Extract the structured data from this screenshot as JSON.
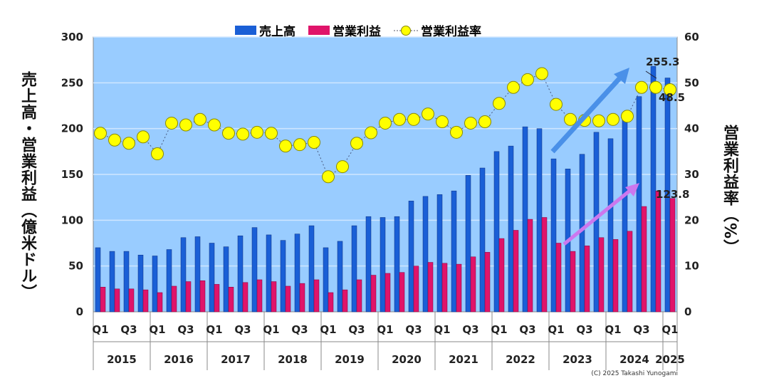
{
  "chart_data": {
    "type": "bar",
    "title": "",
    "ylabel": "売上高・営業利益（億米ドル）",
    "y2label": "営業利益率（%）",
    "ylim": [
      0,
      300
    ],
    "y2lim": [
      0,
      60
    ],
    "yticks": [
      0,
      50,
      100,
      150,
      200,
      250,
      300
    ],
    "y2ticks": [
      0,
      10,
      20,
      30,
      40,
      50,
      60
    ],
    "grid": true,
    "legend_position": "top",
    "years": [
      "2015",
      "2016",
      "2017",
      "2018",
      "2019",
      "2020",
      "2021",
      "2022",
      "2023",
      "2024",
      "2025"
    ],
    "quarter_labels": [
      "Q1",
      "Q3"
    ],
    "categories": [
      "2015Q1",
      "2015Q2",
      "2015Q3",
      "2015Q4",
      "2016Q1",
      "2016Q2",
      "2016Q3",
      "2016Q4",
      "2017Q1",
      "2017Q2",
      "2017Q3",
      "2017Q4",
      "2018Q1",
      "2018Q2",
      "2018Q3",
      "2018Q4",
      "2019Q1",
      "2019Q2",
      "2019Q3",
      "2019Q4",
      "2020Q1",
      "2020Q2",
      "2020Q3",
      "2020Q4",
      "2021Q1",
      "2021Q2",
      "2021Q3",
      "2021Q4",
      "2022Q1",
      "2022Q2",
      "2022Q3",
      "2022Q4",
      "2023Q1",
      "2023Q2",
      "2023Q3",
      "2023Q4",
      "2024Q1",
      "2024Q2",
      "2024Q3",
      "2024Q4",
      "2025Q1"
    ],
    "series": [
      {
        "name": "売上高",
        "type": "bar",
        "axis": "left",
        "color": "#1a5fd6",
        "values": [
          70,
          66,
          66,
          62,
          61,
          68,
          81,
          82,
          75,
          71,
          83,
          92,
          84,
          78,
          85,
          94,
          70,
          77,
          94,
          104,
          103,
          104,
          121,
          126,
          128,
          132,
          149,
          157,
          175,
          181,
          202,
          200,
          167,
          156,
          172,
          196,
          189,
          210,
          235,
          268,
          255.3
        ]
      },
      {
        "name": "営業利益",
        "type": "bar",
        "axis": "left",
        "color": "#e0146a",
        "values": [
          27,
          25,
          25,
          24,
          21,
          28,
          33,
          34,
          30,
          27,
          32,
          35,
          33,
          28,
          31,
          35,
          21,
          24,
          35,
          40,
          42,
          43,
          50,
          54,
          53,
          52,
          60,
          65,
          80,
          89,
          101,
          103,
          75,
          66,
          72,
          81,
          79,
          88,
          115,
          132,
          123.8
        ]
      },
      {
        "name": "営業利益率",
        "type": "line",
        "axis": "right",
        "color": "#ffff00",
        "values": [
          39,
          37.5,
          36.8,
          38.2,
          34.5,
          41.2,
          40.8,
          42,
          40.8,
          39,
          38.8,
          39.2,
          39,
          36.2,
          36.5,
          37,
          29.5,
          31.7,
          36.8,
          39.1,
          41.2,
          42,
          42,
          43.2,
          41.5,
          39.2,
          41.2,
          41.5,
          45.5,
          49,
          50.7,
          52,
          45.3,
          42,
          41.8,
          41.7,
          42,
          42.7,
          49,
          49,
          48.5
        ]
      }
    ],
    "annotations": [
      "255.3",
      "48.5",
      "123.8"
    ]
  },
  "copyright": "(C) 2025 Takashi Yunogami",
  "colors": {
    "plot_bg": "#99ccff",
    "arrow_revenue": "#4a90e8",
    "arrow_profit": "#cc77ee"
  }
}
